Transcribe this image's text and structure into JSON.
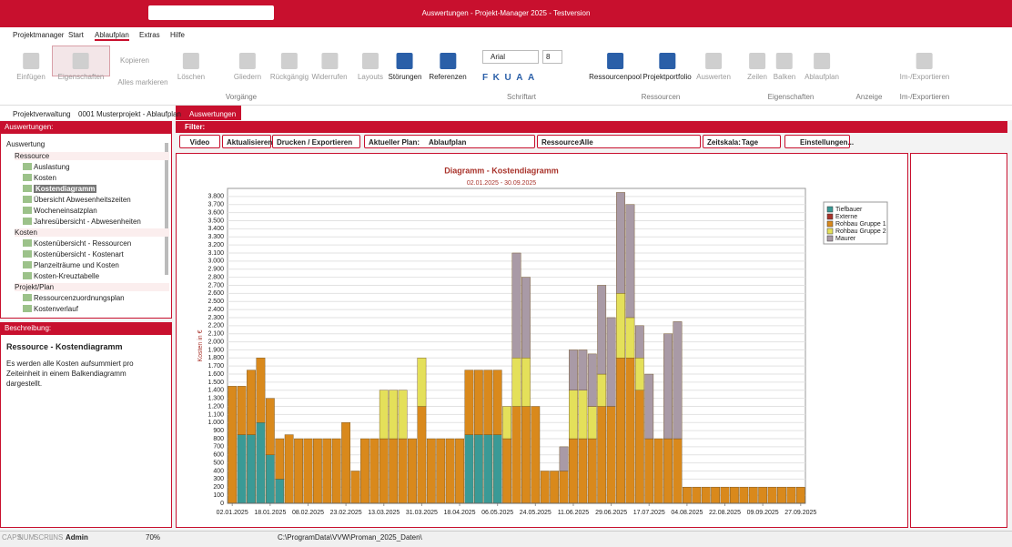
{
  "window": {
    "title": "Auswertungen - Projekt-Manager 2025 - Testversion"
  },
  "menu": [
    "Projektmanager",
    "Start",
    "Ablaufplan",
    "Extras",
    "Hilfe"
  ],
  "ribbon": {
    "buttons": [
      "Einfügen",
      "Eigenschaften",
      "Kopieren",
      "Alles markieren",
      "Löschen",
      "Gliedern",
      "Rückgängig",
      "Widerrufen",
      "Layouts",
      "Störungen",
      "Referenzen",
      "Ressourcenpool",
      "Projektportfolio",
      "Auswerten",
      "Zeilen",
      "Balken",
      "Ablaufplan",
      "Im-/Exportieren"
    ],
    "font": "Arial",
    "size": "8",
    "groups": [
      "Vorgänge",
      "Schriftart",
      "Ressourcen",
      "Eigenschaften",
      "Anzeige",
      "Im-/Exportieren"
    ]
  },
  "tabs": [
    "Projektverwaltung",
    "0001 Musterprojekt - Ablaufplan",
    "Auswertungen"
  ],
  "left": {
    "header": "Auswertungen:",
    "column": "Auswertung",
    "tree": [
      {
        "label": "Ressource",
        "items": [
          "Auslastung",
          "Kosten",
          "Kostendiagramm",
          "Übersicht Abwesenheitszeiten",
          "Wocheneinsatzplan",
          "Jahresübersicht - Abwesenheiten"
        ]
      },
      {
        "label": "Kosten",
        "items": [
          "Kostenübersicht - Ressourcen",
          "Kostenübersicht - Kostenart",
          "Planzeiträume und Kosten",
          "Kosten-Kreuztabelle"
        ]
      },
      {
        "label": "Projekt/Plan",
        "items": [
          "Ressourcenzuordnungsplan",
          "Kostenverlauf"
        ]
      }
    ]
  },
  "description": {
    "header": "Beschreibung:",
    "title": "Ressource - Kostendiagramm",
    "text": "Es werden alle Kosten aufsummiert pro Zeiteinheit in einem Balkendiagramm dargestellt."
  },
  "filter": {
    "header": "Filter:",
    "video": "Video",
    "refresh": "Aktualisieren",
    "print": "Drucken / Exportieren",
    "plan_label": "Aktueller Plan:",
    "plan": "Ablaufplan",
    "resource_label": "Ressource:",
    "resource": "Alle",
    "scale_label": "Zeitskala:",
    "scale": "Tage",
    "settings": "Einstellungen..."
  },
  "status": [
    "CAPS",
    "NUM",
    "SCRL",
    "INS",
    "Admin",
    "70%",
    "C:\\ProgramData\\VVW\\Proman_2025_Daten\\"
  ],
  "chart_data": {
    "type": "stacked_bar",
    "title": "Diagramm - Kostendiagramm",
    "subtitle": "02.01.2025 - 30.09.2025",
    "y_label": "Kosten in €",
    "categories": [
      "02.01.2025",
      null,
      null,
      null,
      "18.01.2025",
      null,
      null,
      null,
      "08.02.2025",
      null,
      null,
      null,
      "23.02.2025",
      null,
      null,
      null,
      "13.03.2025",
      null,
      null,
      null,
      "31.03.2025",
      null,
      null,
      null,
      "18.04.2025",
      null,
      null,
      null,
      "06.05.2025",
      null,
      null,
      null,
      "24.05.2025",
      null,
      null,
      null,
      "11.06.2025",
      null,
      null,
      null,
      "29.06.2025",
      null,
      null,
      null,
      "17.07.2025",
      null,
      null,
      null,
      "04.08.2025",
      null,
      null,
      null,
      "22.08.2025",
      null,
      null,
      null,
      "09.09.2025",
      null,
      null,
      null,
      "27.09.2025"
    ],
    "series": [
      {
        "name": "Tiefbauer",
        "color": "#3a9a96",
        "values": [
          0,
          850,
          850,
          1000,
          600,
          300,
          0,
          0,
          0,
          0,
          0,
          0,
          0,
          0,
          0,
          0,
          0,
          0,
          0,
          0,
          0,
          0,
          0,
          0,
          0,
          850,
          850,
          850,
          850,
          0,
          0,
          0,
          0,
          0,
          0,
          0,
          0,
          0,
          0,
          0,
          0,
          0,
          0,
          0,
          0,
          0,
          0,
          0,
          0,
          0,
          0,
          0,
          0,
          0,
          0,
          0,
          0,
          0,
          0,
          0,
          0
        ]
      },
      {
        "name": "Externe",
        "color": "#a8322a",
        "values": [
          0,
          0,
          0,
          0,
          0,
          0,
          0,
          0,
          0,
          0,
          0,
          0,
          0,
          0,
          0,
          0,
          0,
          0,
          0,
          0,
          0,
          0,
          0,
          0,
          0,
          0,
          0,
          0,
          0,
          0,
          0,
          0,
          0,
          0,
          0,
          0,
          0,
          0,
          0,
          0,
          0,
          0,
          0,
          0,
          0,
          0,
          0,
          0,
          0,
          0,
          0,
          0,
          0,
          0,
          0,
          0,
          0,
          0,
          0,
          0,
          0
        ]
      },
      {
        "name": "Rohbau Gruppe 1",
        "color": "#d9891c",
        "values": [
          1450,
          600,
          800,
          800,
          700,
          500,
          850,
          800,
          800,
          800,
          800,
          800,
          1000,
          400,
          800,
          800,
          800,
          800,
          800,
          800,
          1200,
          800,
          800,
          800,
          800,
          800,
          800,
          800,
          800,
          800,
          1200,
          1200,
          1200,
          400,
          400,
          400,
          800,
          800,
          800,
          1200,
          1200,
          1800,
          1800,
          1400,
          800,
          800,
          800,
          800,
          200,
          200,
          200,
          200,
          200,
          200,
          200,
          200,
          200,
          200,
          200,
          200,
          200
        ]
      },
      {
        "name": "Rohbau Gruppe 2",
        "color": "#e4e05a",
        "values": [
          0,
          0,
          0,
          0,
          0,
          0,
          0,
          0,
          0,
          0,
          0,
          0,
          0,
          0,
          0,
          0,
          600,
          600,
          600,
          0,
          600,
          0,
          0,
          0,
          0,
          0,
          0,
          0,
          0,
          400,
          600,
          600,
          0,
          0,
          0,
          0,
          600,
          600,
          400,
          400,
          0,
          800,
          500,
          400,
          0,
          0,
          0,
          0,
          0,
          0,
          0,
          0,
          0,
          0,
          0,
          0,
          0,
          0,
          0,
          0,
          0
        ]
      },
      {
        "name": "Maurer",
        "color": "#a99aa6",
        "values": [
          0,
          0,
          0,
          0,
          0,
          0,
          0,
          0,
          0,
          0,
          0,
          0,
          0,
          0,
          0,
          0,
          0,
          0,
          0,
          0,
          0,
          0,
          0,
          0,
          0,
          0,
          0,
          0,
          0,
          0,
          1300,
          1000,
          0,
          0,
          0,
          300,
          500,
          500,
          650,
          1100,
          1100,
          1250,
          1400,
          400,
          800,
          0,
          1300,
          1450,
          0,
          0,
          0,
          0,
          0,
          0,
          0,
          0,
          0,
          0,
          0,
          0,
          0
        ]
      }
    ],
    "ylim": [
      0,
      3900
    ],
    "yticks": [
      0,
      100,
      200,
      300,
      400,
      500,
      600,
      700,
      800,
      900,
      {
        "value": 1000,
        "label": "1.000"
      },
      {
        "value": 1100,
        "label": "1.100"
      },
      {
        "value": 1200,
        "label": "1.200"
      },
      {
        "value": 1300,
        "label": "1.300"
      },
      {
        "value": 1400,
        "label": "1.400"
      },
      {
        "value": 1500,
        "label": "1.500"
      },
      {
        "value": 1600,
        "label": "1.600"
      },
      {
        "value": 1700,
        "label": "1.700"
      },
      {
        "value": 1800,
        "label": "1.800"
      },
      {
        "value": 1900,
        "label": "1.900"
      },
      {
        "value": 2000,
        "label": "2.000"
      },
      {
        "value": 2100,
        "label": "2.100"
      },
      {
        "value": 2200,
        "label": "2.200"
      },
      {
        "value": 2300,
        "label": "2.300"
      },
      {
        "value": 2400,
        "label": "2.400"
      },
      {
        "value": 2500,
        "label": "2.500"
      },
      {
        "value": 2600,
        "label": "2.600"
      },
      {
        "value": 2700,
        "label": "2.700"
      },
      {
        "value": 2800,
        "label": "2.800"
      },
      {
        "value": 2900,
        "label": "2.900"
      },
      {
        "value": 3000,
        "label": "3.000"
      },
      {
        "value": 3100,
        "label": "3.100"
      },
      {
        "value": 3200,
        "label": "3.200"
      },
      {
        "value": 3300,
        "label": "3.300"
      },
      {
        "value": 3400,
        "label": "3.400"
      },
      {
        "value": 3500,
        "label": "3.500"
      },
      {
        "value": 3600,
        "label": "3.600"
      },
      {
        "value": 3700,
        "label": "3.700"
      },
      {
        "value": 3800,
        "label": "3.800"
      }
    ],
    "grid": true,
    "legend": "top-right"
  }
}
